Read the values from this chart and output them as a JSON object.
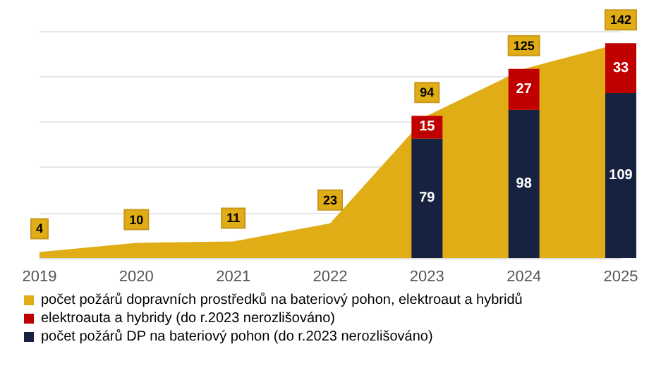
{
  "chart_data": {
    "type": "area",
    "categories": [
      "2019",
      "2020",
      "2021",
      "2022",
      "2023",
      "2024",
      "2025"
    ],
    "series": [
      {
        "name": "počet požárů dopravních prostředků na bateriový pohon, elektroaut a hybridů",
        "color": "#e0ad17",
        "values": [
          4,
          10,
          11,
          23,
          94,
          125,
          142
        ]
      },
      {
        "name": "počet požárů DP na bateriový pohon (do r.2023 nerozlišováno)",
        "type": "bar",
        "color": "#172241",
        "values": [
          null,
          null,
          null,
          null,
          79,
          98,
          109
        ]
      },
      {
        "name": "elektroauta a hybridy (do r.2023 nerozlišováno)",
        "type": "bar",
        "color": "#c00000",
        "values": [
          null,
          null,
          null,
          null,
          15,
          27,
          33
        ]
      }
    ],
    "stacked": true,
    "data_labels": true,
    "legend": "bottom",
    "grid": "y",
    "tick_labels": "x",
    "marker": "none"
  }
}
